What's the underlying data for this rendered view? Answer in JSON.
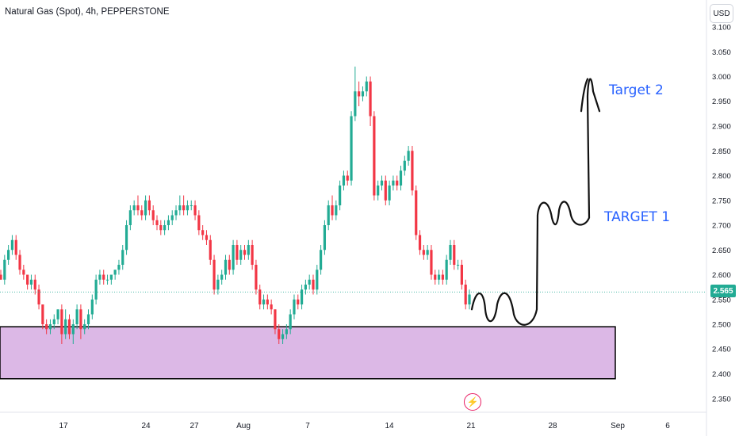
{
  "header": {
    "symbol_title": "Natural Gas (Spot), 4h, PEPPERSTONE",
    "currency": "USD"
  },
  "annotations": {
    "target2": "Target 2",
    "target1": "TARGET 1"
  },
  "colors": {
    "up": "#22ab94",
    "down": "#f23645",
    "zone_fill": "#dcb8e6",
    "zone_border": "#000000",
    "price_line": "#22ab94",
    "annotation": "#2962ff",
    "event_icon": "#e91e63"
  },
  "icons": {
    "event": "lightning-icon"
  },
  "chart_data": {
    "type": "candlestick",
    "symbol": "Natural Gas (Spot)",
    "interval": "4h",
    "source": "PEPPERSTONE",
    "currency": "USD",
    "ylim": [
      2.33,
      3.11
    ],
    "y_ticks": [
      "3.100",
      "3.050",
      "3.000",
      "2.950",
      "2.900",
      "2.850",
      "2.800",
      "2.750",
      "2.700",
      "2.650",
      "2.600",
      "2.550",
      "2.500",
      "2.450",
      "2.400",
      "2.350"
    ],
    "x_ticks": [
      "17",
      "24",
      "27",
      "Aug",
      "7",
      "14",
      "21",
      "28",
      "Sep",
      "6"
    ],
    "last_price": "2.565",
    "support_zone": {
      "low": 2.39,
      "high": 2.495
    },
    "projection_path": [
      2.53,
      2.57,
      2.5,
      2.57,
      2.495,
      2.75,
      2.7,
      2.75,
      2.7,
      3.0,
      2.93
    ],
    "candles": [
      [
        2.6,
        2.61,
        2.59,
        2.59
      ],
      [
        2.59,
        2.64,
        2.58,
        2.63
      ],
      [
        2.63,
        2.66,
        2.62,
        2.65
      ],
      [
        2.65,
        2.68,
        2.64,
        2.67
      ],
      [
        2.67,
        2.68,
        2.63,
        2.64
      ],
      [
        2.64,
        2.65,
        2.6,
        2.61
      ],
      [
        2.61,
        2.62,
        2.59,
        2.6
      ],
      [
        2.6,
        2.6,
        2.57,
        2.58
      ],
      [
        2.58,
        2.6,
        2.57,
        2.59
      ],
      [
        2.59,
        2.6,
        2.56,
        2.57
      ],
      [
        2.57,
        2.58,
        2.53,
        2.54
      ],
      [
        2.54,
        2.54,
        2.49,
        2.5
      ],
      [
        2.5,
        2.51,
        2.48,
        2.49
      ],
      [
        2.49,
        2.51,
        2.48,
        2.5
      ],
      [
        2.5,
        2.52,
        2.49,
        2.51
      ],
      [
        2.51,
        2.53,
        2.5,
        2.53
      ],
      [
        2.53,
        2.54,
        2.46,
        2.48
      ],
      [
        2.48,
        2.53,
        2.47,
        2.51
      ],
      [
        2.51,
        2.52,
        2.47,
        2.48
      ],
      [
        2.48,
        2.51,
        2.46,
        2.5
      ],
      [
        2.5,
        2.54,
        2.49,
        2.53
      ],
      [
        2.53,
        2.54,
        2.47,
        2.49
      ],
      [
        2.49,
        2.51,
        2.48,
        2.5
      ],
      [
        2.5,
        2.53,
        2.49,
        2.52
      ],
      [
        2.52,
        2.56,
        2.51,
        2.55
      ],
      [
        2.55,
        2.6,
        2.54,
        2.59
      ],
      [
        2.59,
        2.61,
        2.58,
        2.6
      ],
      [
        2.6,
        2.61,
        2.58,
        2.59
      ],
      [
        2.59,
        2.6,
        2.58,
        2.59
      ],
      [
        2.59,
        2.6,
        2.58,
        2.6
      ],
      [
        2.6,
        2.61,
        2.59,
        2.61
      ],
      [
        2.61,
        2.63,
        2.6,
        2.62
      ],
      [
        2.62,
        2.66,
        2.61,
        2.65
      ],
      [
        2.65,
        2.71,
        2.64,
        2.7
      ],
      [
        2.7,
        2.74,
        2.69,
        2.73
      ],
      [
        2.73,
        2.75,
        2.72,
        2.74
      ],
      [
        2.74,
        2.76,
        2.72,
        2.73
      ],
      [
        2.73,
        2.74,
        2.71,
        2.72
      ],
      [
        2.72,
        2.76,
        2.71,
        2.75
      ],
      [
        2.75,
        2.76,
        2.72,
        2.73
      ],
      [
        2.73,
        2.74,
        2.7,
        2.71
      ],
      [
        2.71,
        2.72,
        2.69,
        2.7
      ],
      [
        2.7,
        2.71,
        2.68,
        2.69
      ],
      [
        2.69,
        2.71,
        2.68,
        2.7
      ],
      [
        2.7,
        2.72,
        2.69,
        2.71
      ],
      [
        2.71,
        2.73,
        2.7,
        2.72
      ],
      [
        2.72,
        2.74,
        2.71,
        2.73
      ],
      [
        2.73,
        2.76,
        2.72,
        2.74
      ],
      [
        2.74,
        2.76,
        2.72,
        2.73
      ],
      [
        2.73,
        2.75,
        2.72,
        2.74
      ],
      [
        2.74,
        2.75,
        2.73,
        2.74
      ],
      [
        2.74,
        2.75,
        2.71,
        2.72
      ],
      [
        2.72,
        2.73,
        2.68,
        2.69
      ],
      [
        2.69,
        2.7,
        2.67,
        2.68
      ],
      [
        2.68,
        2.69,
        2.66,
        2.67
      ],
      [
        2.67,
        2.68,
        2.62,
        2.63
      ],
      [
        2.63,
        2.64,
        2.56,
        2.57
      ],
      [
        2.57,
        2.6,
        2.56,
        2.59
      ],
      [
        2.59,
        2.61,
        2.58,
        2.6
      ],
      [
        2.6,
        2.64,
        2.59,
        2.63
      ],
      [
        2.63,
        2.64,
        2.6,
        2.61
      ],
      [
        2.61,
        2.67,
        2.6,
        2.66
      ],
      [
        2.66,
        2.67,
        2.62,
        2.63
      ],
      [
        2.63,
        2.66,
        2.62,
        2.65
      ],
      [
        2.65,
        2.66,
        2.63,
        2.64
      ],
      [
        2.64,
        2.67,
        2.63,
        2.66
      ],
      [
        2.66,
        2.67,
        2.61,
        2.62
      ],
      [
        2.62,
        2.63,
        2.56,
        2.57
      ],
      [
        2.57,
        2.58,
        2.53,
        2.54
      ],
      [
        2.54,
        2.56,
        2.53,
        2.55
      ],
      [
        2.55,
        2.56,
        2.53,
        2.54
      ],
      [
        2.54,
        2.55,
        2.52,
        2.53
      ],
      [
        2.53,
        2.53,
        2.48,
        2.49
      ],
      [
        2.49,
        2.5,
        2.46,
        2.47
      ],
      [
        2.47,
        2.49,
        2.46,
        2.48
      ],
      [
        2.48,
        2.5,
        2.47,
        2.49
      ],
      [
        2.49,
        2.53,
        2.48,
        2.52
      ],
      [
        2.52,
        2.56,
        2.51,
        2.55
      ],
      [
        2.55,
        2.56,
        2.53,
        2.54
      ],
      [
        2.54,
        2.58,
        2.53,
        2.57
      ],
      [
        2.57,
        2.59,
        2.56,
        2.58
      ],
      [
        2.58,
        2.6,
        2.57,
        2.59
      ],
      [
        2.59,
        2.6,
        2.56,
        2.57
      ],
      [
        2.57,
        2.62,
        2.56,
        2.61
      ],
      [
        2.61,
        2.66,
        2.6,
        2.65
      ],
      [
        2.65,
        2.71,
        2.64,
        2.7
      ],
      [
        2.7,
        2.75,
        2.69,
        2.74
      ],
      [
        2.74,
        2.76,
        2.71,
        2.72
      ],
      [
        2.72,
        2.75,
        2.71,
        2.74
      ],
      [
        2.74,
        2.79,
        2.73,
        2.78
      ],
      [
        2.78,
        2.81,
        2.77,
        2.8
      ],
      [
        2.8,
        2.81,
        2.78,
        2.79
      ],
      [
        2.79,
        2.93,
        2.78,
        2.92
      ],
      [
        2.92,
        3.02,
        2.91,
        2.97
      ],
      [
        2.97,
        2.99,
        2.94,
        2.96
      ],
      [
        2.96,
        2.98,
        2.95,
        2.97
      ],
      [
        2.97,
        3.0,
        2.96,
        2.99
      ],
      [
        2.99,
        3.0,
        2.9,
        2.92
      ],
      [
        2.92,
        2.93,
        2.75,
        2.76
      ],
      [
        2.76,
        2.79,
        2.75,
        2.78
      ],
      [
        2.78,
        2.8,
        2.77,
        2.79
      ],
      [
        2.79,
        2.8,
        2.74,
        2.75
      ],
      [
        2.75,
        2.79,
        2.74,
        2.78
      ],
      [
        2.78,
        2.8,
        2.77,
        2.79
      ],
      [
        2.79,
        2.8,
        2.77,
        2.78
      ],
      [
        2.78,
        2.82,
        2.77,
        2.81
      ],
      [
        2.81,
        2.84,
        2.8,
        2.83
      ],
      [
        2.83,
        2.86,
        2.82,
        2.85
      ],
      [
        2.85,
        2.86,
        2.76,
        2.77
      ],
      [
        2.77,
        2.78,
        2.67,
        2.68
      ],
      [
        2.68,
        2.69,
        2.64,
        2.65
      ],
      [
        2.65,
        2.66,
        2.63,
        2.64
      ],
      [
        2.64,
        2.66,
        2.63,
        2.65
      ],
      [
        2.65,
        2.66,
        2.59,
        2.6
      ],
      [
        2.6,
        2.61,
        2.58,
        2.59
      ],
      [
        2.59,
        2.61,
        2.58,
        2.6
      ],
      [
        2.6,
        2.61,
        2.58,
        2.59
      ],
      [
        2.59,
        2.64,
        2.58,
        2.63
      ],
      [
        2.63,
        2.67,
        2.62,
        2.66
      ],
      [
        2.66,
        2.67,
        2.61,
        2.62
      ],
      [
        2.62,
        2.63,
        2.61,
        2.62
      ],
      [
        2.62,
        2.63,
        2.57,
        2.58
      ],
      [
        2.58,
        2.59,
        2.53,
        2.54
      ],
      [
        2.54,
        2.57,
        2.53,
        2.56
      ]
    ]
  }
}
